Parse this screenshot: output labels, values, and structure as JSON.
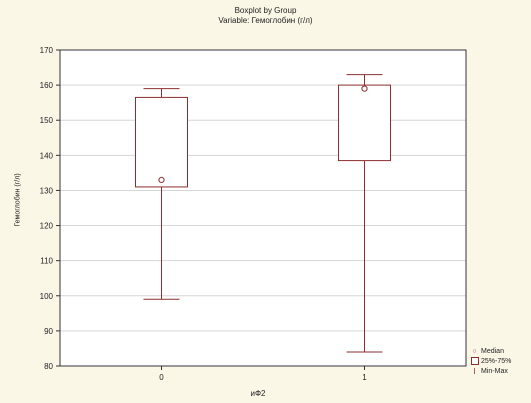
{
  "chart_data": {
    "type": "boxplot",
    "title": "Boxplot by Group",
    "subtitle": "Variable: Гемоглобин (г/л)",
    "xlabel": "иФ2",
    "ylabel": "Гемоглобин (г/л)",
    "ylim": [
      80,
      170
    ],
    "yticks": [
      "80",
      "90",
      "100",
      "110",
      "120",
      "130",
      "140",
      "150",
      "160",
      "170"
    ],
    "categories": [
      "0",
      "1"
    ],
    "groups": [
      {
        "category": "0",
        "min": 99,
        "q1": 131,
        "median": 133,
        "q3": 156.5,
        "max": 159
      },
      {
        "category": "1",
        "min": 84,
        "q1": 138.5,
        "median": 159,
        "q3": 160,
        "max": 163
      }
    ],
    "grid": true,
    "legend_position": "bottom-right",
    "legend": {
      "median": "Median",
      "box": "25%-75%",
      "whisker": "Min-Max"
    },
    "colors": {
      "box_line": "#8b2e2e",
      "grid": "#d6d6d6",
      "background": "#fbf7e7"
    }
  }
}
